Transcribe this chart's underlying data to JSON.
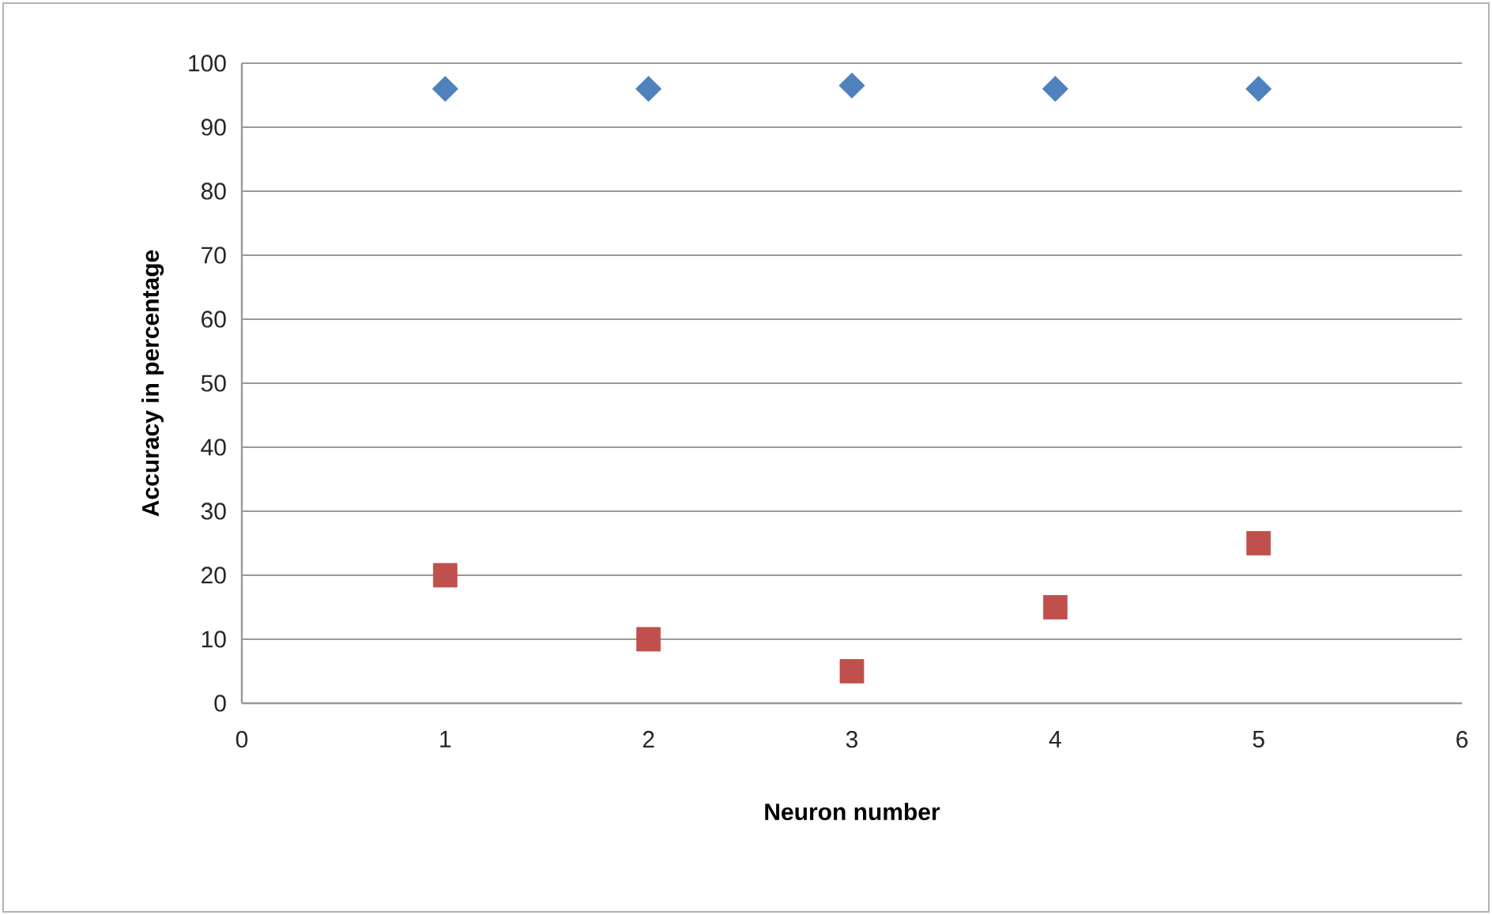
{
  "chart_data": {
    "type": "scatter",
    "xlabel": "Neuron number",
    "ylabel": "Accuracy in percentage",
    "x": [
      1,
      2,
      3,
      4,
      5
    ],
    "series": [
      {
        "color": "#4f81bd",
        "marker": "diamond",
        "values": [
          96,
          96,
          96.5,
          96,
          96
        ]
      },
      {
        "color": "#c0504d",
        "marker": "square",
        "values": [
          20,
          10,
          5,
          15,
          25
        ]
      }
    ],
    "xlim": [
      0,
      6
    ],
    "xticks": [
      0,
      1,
      2,
      3,
      4,
      5,
      6
    ],
    "ylim": [
      0,
      100
    ],
    "yticks": [
      0,
      10,
      20,
      30,
      40,
      50,
      60,
      70,
      80,
      90,
      100
    ],
    "grid": "y"
  }
}
